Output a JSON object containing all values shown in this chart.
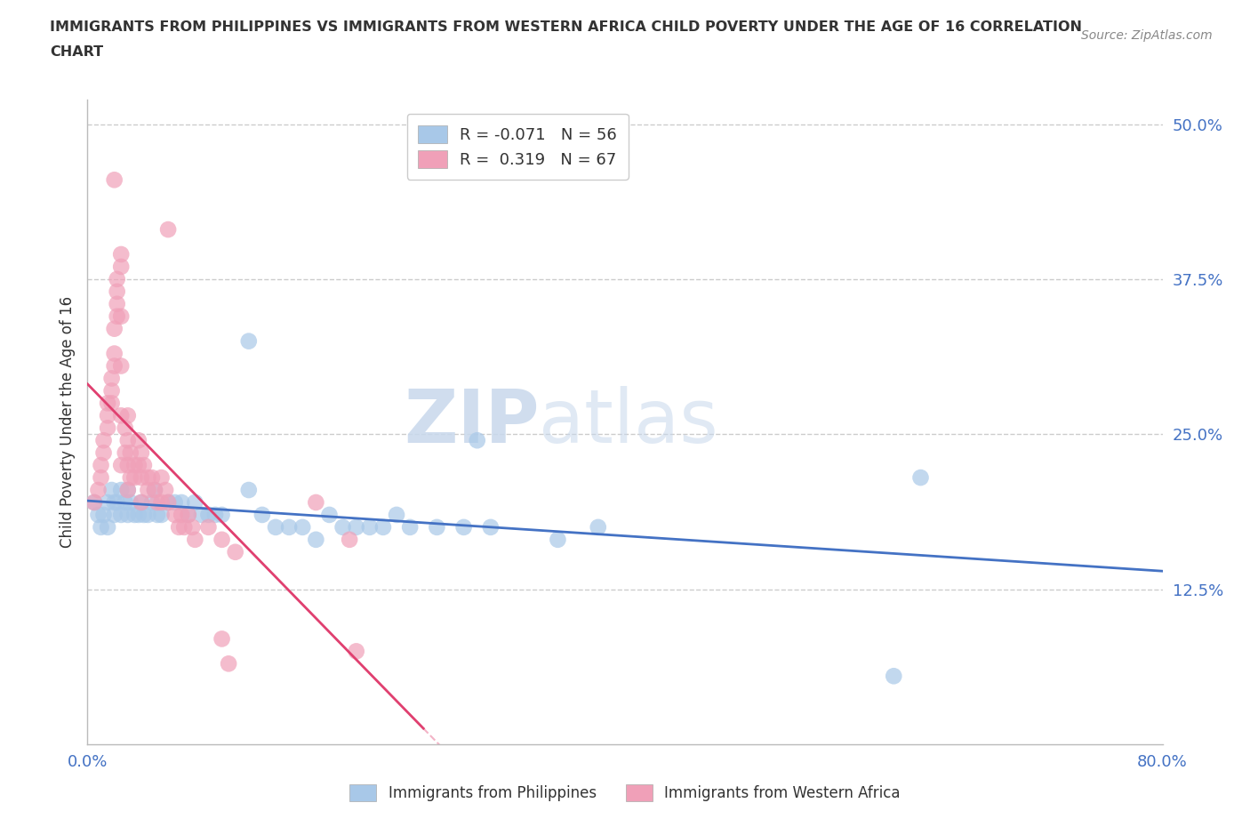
{
  "title_line1": "IMMIGRANTS FROM PHILIPPINES VS IMMIGRANTS FROM WESTERN AFRICA CHILD POVERTY UNDER THE AGE OF 16 CORRELATION",
  "title_line2": "CHART",
  "source": "Source: ZipAtlas.com",
  "xlabel_blue": "Immigrants from Philippines",
  "xlabel_pink": "Immigrants from Western Africa",
  "ylabel": "Child Poverty Under the Age of 16",
  "watermark_part1": "ZIP",
  "watermark_part2": "atlas",
  "xlim": [
    0.0,
    0.8
  ],
  "ylim": [
    0.0,
    0.52
  ],
  "ytick_vals": [
    0.0,
    0.125,
    0.25,
    0.375,
    0.5
  ],
  "ytick_labels": [
    "",
    "12.5%",
    "25.0%",
    "37.5%",
    "50.0%"
  ],
  "xtick_vals": [
    0.0,
    0.2,
    0.4,
    0.6,
    0.8
  ],
  "xtick_labels": [
    "0.0%",
    "",
    "",
    "",
    "80.0%"
  ],
  "R_blue": -0.071,
  "N_blue": 56,
  "R_pink": 0.319,
  "N_pink": 67,
  "color_blue": "#A8C8E8",
  "color_pink": "#F0A0B8",
  "line_blue": "#4472C4",
  "line_pink": "#E04070",
  "line_pink_dash": "#F0A0B8",
  "scatter_blue": [
    [
      0.005,
      0.195
    ],
    [
      0.008,
      0.185
    ],
    [
      0.01,
      0.175
    ],
    [
      0.012,
      0.185
    ],
    [
      0.015,
      0.195
    ],
    [
      0.015,
      0.175
    ],
    [
      0.018,
      0.205
    ],
    [
      0.02,
      0.195
    ],
    [
      0.02,
      0.185
    ],
    [
      0.022,
      0.195
    ],
    [
      0.025,
      0.205
    ],
    [
      0.025,
      0.185
    ],
    [
      0.028,
      0.195
    ],
    [
      0.03,
      0.205
    ],
    [
      0.03,
      0.185
    ],
    [
      0.032,
      0.195
    ],
    [
      0.035,
      0.185
    ],
    [
      0.038,
      0.185
    ],
    [
      0.04,
      0.195
    ],
    [
      0.042,
      0.185
    ],
    [
      0.045,
      0.185
    ],
    [
      0.048,
      0.195
    ],
    [
      0.05,
      0.205
    ],
    [
      0.052,
      0.185
    ],
    [
      0.055,
      0.185
    ],
    [
      0.06,
      0.195
    ],
    [
      0.065,
      0.195
    ],
    [
      0.07,
      0.195
    ],
    [
      0.075,
      0.185
    ],
    [
      0.08,
      0.195
    ],
    [
      0.085,
      0.185
    ],
    [
      0.09,
      0.185
    ],
    [
      0.095,
      0.185
    ],
    [
      0.1,
      0.185
    ],
    [
      0.12,
      0.205
    ],
    [
      0.13,
      0.185
    ],
    [
      0.14,
      0.175
    ],
    [
      0.15,
      0.175
    ],
    [
      0.16,
      0.175
    ],
    [
      0.17,
      0.165
    ],
    [
      0.18,
      0.185
    ],
    [
      0.19,
      0.175
    ],
    [
      0.2,
      0.175
    ],
    [
      0.21,
      0.175
    ],
    [
      0.22,
      0.175
    ],
    [
      0.23,
      0.185
    ],
    [
      0.24,
      0.175
    ],
    [
      0.26,
      0.175
    ],
    [
      0.28,
      0.175
    ],
    [
      0.3,
      0.175
    ],
    [
      0.35,
      0.165
    ],
    [
      0.38,
      0.175
    ],
    [
      0.12,
      0.325
    ],
    [
      0.29,
      0.245
    ],
    [
      0.62,
      0.215
    ],
    [
      0.6,
      0.055
    ]
  ],
  "scatter_pink": [
    [
      0.005,
      0.195
    ],
    [
      0.008,
      0.205
    ],
    [
      0.01,
      0.215
    ],
    [
      0.01,
      0.225
    ],
    [
      0.012,
      0.235
    ],
    [
      0.012,
      0.245
    ],
    [
      0.015,
      0.255
    ],
    [
      0.015,
      0.265
    ],
    [
      0.015,
      0.275
    ],
    [
      0.018,
      0.275
    ],
    [
      0.018,
      0.285
    ],
    [
      0.018,
      0.295
    ],
    [
      0.02,
      0.305
    ],
    [
      0.02,
      0.315
    ],
    [
      0.02,
      0.335
    ],
    [
      0.022,
      0.345
    ],
    [
      0.022,
      0.355
    ],
    [
      0.022,
      0.365
    ],
    [
      0.022,
      0.375
    ],
    [
      0.025,
      0.385
    ],
    [
      0.025,
      0.395
    ],
    [
      0.025,
      0.345
    ],
    [
      0.025,
      0.305
    ],
    [
      0.025,
      0.265
    ],
    [
      0.025,
      0.225
    ],
    [
      0.028,
      0.255
    ],
    [
      0.028,
      0.235
    ],
    [
      0.03,
      0.265
    ],
    [
      0.03,
      0.245
    ],
    [
      0.03,
      0.225
    ],
    [
      0.03,
      0.205
    ],
    [
      0.032,
      0.235
    ],
    [
      0.032,
      0.215
    ],
    [
      0.035,
      0.225
    ],
    [
      0.035,
      0.215
    ],
    [
      0.038,
      0.245
    ],
    [
      0.038,
      0.225
    ],
    [
      0.04,
      0.235
    ],
    [
      0.04,
      0.215
    ],
    [
      0.04,
      0.195
    ],
    [
      0.042,
      0.225
    ],
    [
      0.045,
      0.215
    ],
    [
      0.045,
      0.205
    ],
    [
      0.048,
      0.215
    ],
    [
      0.05,
      0.205
    ],
    [
      0.052,
      0.195
    ],
    [
      0.055,
      0.215
    ],
    [
      0.055,
      0.195
    ],
    [
      0.058,
      0.205
    ],
    [
      0.06,
      0.195
    ],
    [
      0.065,
      0.185
    ],
    [
      0.068,
      0.175
    ],
    [
      0.07,
      0.185
    ],
    [
      0.072,
      0.175
    ],
    [
      0.075,
      0.185
    ],
    [
      0.078,
      0.175
    ],
    [
      0.08,
      0.165
    ],
    [
      0.09,
      0.175
    ],
    [
      0.1,
      0.165
    ],
    [
      0.11,
      0.155
    ],
    [
      0.02,
      0.455
    ],
    [
      0.06,
      0.415
    ],
    [
      0.17,
      0.195
    ],
    [
      0.1,
      0.085
    ],
    [
      0.105,
      0.065
    ],
    [
      0.195,
      0.165
    ],
    [
      0.2,
      0.075
    ]
  ],
  "background_color": "#FFFFFF",
  "grid_color": "#CCCCCC",
  "title_color": "#333333",
  "axis_color": "#4472C4"
}
